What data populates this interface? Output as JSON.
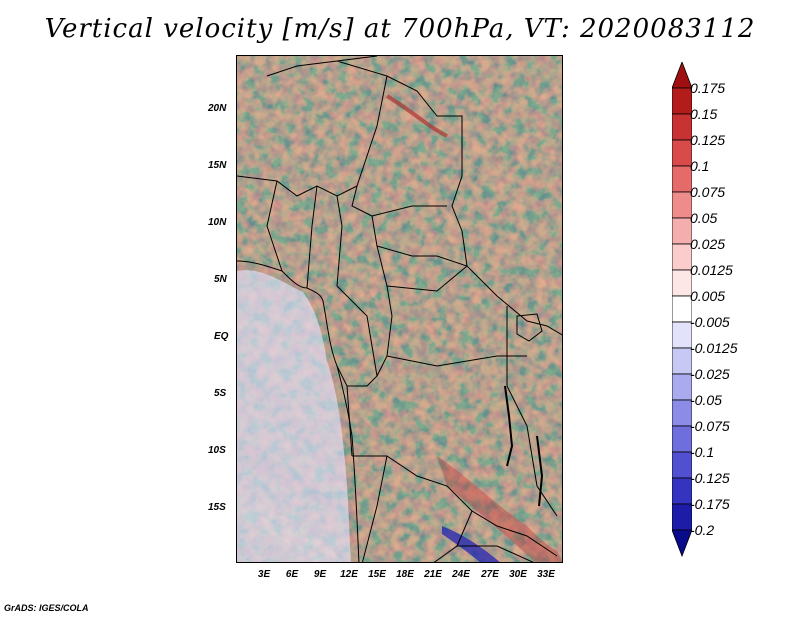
{
  "title": "Vertical velocity [m/s] at 700hPa, VT: 2020083112",
  "credit": "GrADS: IGES/COLA",
  "map": {
    "variable": "Vertical velocity",
    "units": "m/s",
    "level": "700hPa",
    "valid_time": "2020083112",
    "lon_range": [
      0,
      35
    ],
    "lat_range": [
      -20,
      25
    ],
    "lat_ticks": [
      "20N",
      "15N",
      "10N",
      "5N",
      "EQ",
      "5S",
      "10S",
      "15S"
    ],
    "lon_ticks": [
      "3E",
      "6E",
      "9E",
      "12E",
      "15E",
      "18E",
      "21E",
      "24E",
      "27E",
      "30E",
      "33E"
    ]
  },
  "colorbar": {
    "labels": [
      "0.175",
      "0.15",
      "0.125",
      "0.1",
      "0.075",
      "0.05",
      "0.025",
      "0.0125",
      "0.005",
      "-0.005",
      "-0.0125",
      "-0.025",
      "-0.05",
      "-0.075",
      "-0.1",
      "-0.125",
      "-0.175",
      "-0.2"
    ],
    "colors": [
      "#a01010",
      "#b41c1c",
      "#c83232",
      "#d94a4a",
      "#e56a6a",
      "#ee8c8c",
      "#f5aeae",
      "#facccc",
      "#fde6e6",
      "#ffffff",
      "#e2e2fa",
      "#c8c8f5",
      "#aaaaee",
      "#8c8ce6",
      "#6e6edc",
      "#5050d0",
      "#3434c0",
      "#1c1ca8",
      "#0a0a8c"
    ]
  }
}
